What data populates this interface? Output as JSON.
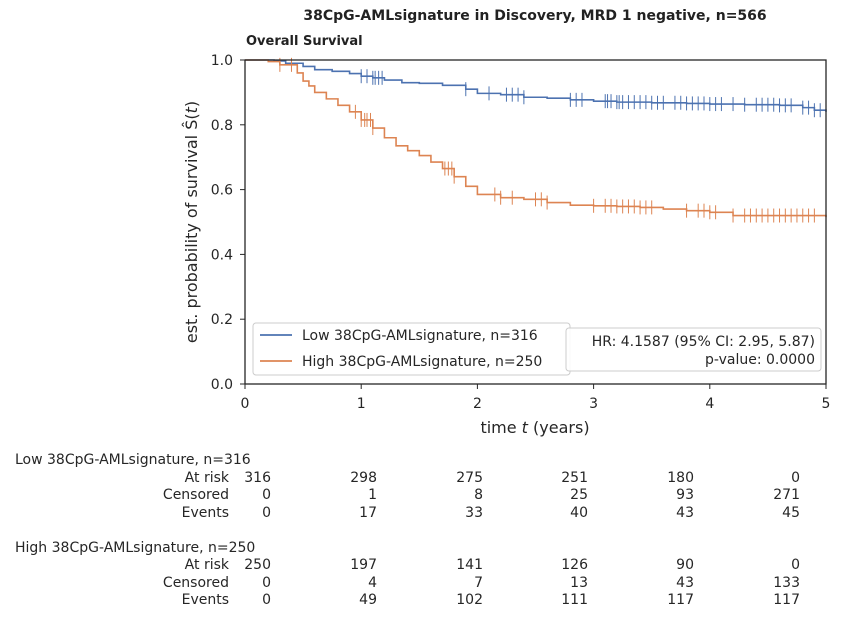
{
  "title": "38CpG-AMLsignature in Discovery, MRD 1 negative, n=566",
  "subtitle": "Overall Survival",
  "chart_data": {
    "type": "line",
    "step": true,
    "xlabel": "time t (years)",
    "ylabel": "est. probability of survival Ŝ(t)",
    "xlim": [
      0,
      5
    ],
    "ylim": [
      0,
      1
    ],
    "xticks": [
      "0",
      "1",
      "2",
      "3",
      "4",
      "5"
    ],
    "yticks": [
      "0.0",
      "0.2",
      "0.4",
      "0.6",
      "0.8",
      "1.0"
    ],
    "legend_position": "bottom-left",
    "colors": {
      "low": "#4c72b0",
      "high": "#dd8452"
    },
    "annotation": {
      "line1": "HR: 4.1587 (95% CI: 2.95, 5.87)",
      "line2": "p-value: 0.0000"
    },
    "series": [
      {
        "name": "Low 38CpG-AMLsignature, n=316",
        "color": "#4c72b0",
        "x": [
          0,
          0.25,
          0.35,
          0.5,
          0.6,
          0.75,
          0.9,
          1.0,
          1.1,
          1.2,
          1.35,
          1.5,
          1.7,
          1.9,
          2.0,
          2.2,
          2.4,
          2.6,
          2.8,
          3.0,
          3.2,
          3.5,
          3.8,
          4.0,
          4.3,
          4.6,
          4.8,
          4.9,
          5.0
        ],
        "y": [
          1.0,
          0.997,
          0.99,
          0.98,
          0.97,
          0.965,
          0.958,
          0.95,
          0.945,
          0.938,
          0.93,
          0.928,
          0.922,
          0.91,
          0.897,
          0.893,
          0.885,
          0.882,
          0.877,
          0.873,
          0.87,
          0.868,
          0.866,
          0.864,
          0.862,
          0.86,
          0.853,
          0.845,
          0.84
        ],
        "censor_x": [
          1.0,
          1.05,
          1.1,
          1.12,
          1.15,
          1.18,
          1.9,
          2.1,
          2.25,
          2.3,
          2.35,
          2.4,
          2.8,
          2.85,
          2.9,
          3.1,
          3.12,
          3.15,
          3.2,
          3.22,
          3.25,
          3.3,
          3.35,
          3.4,
          3.45,
          3.5,
          3.55,
          3.6,
          3.7,
          3.75,
          3.8,
          3.85,
          3.9,
          3.95,
          4.0,
          4.05,
          4.1,
          4.2,
          4.3,
          4.4,
          4.45,
          4.5,
          4.55,
          4.6,
          4.65,
          4.7,
          4.8,
          4.85,
          4.9,
          4.95
        ]
      },
      {
        "name": "High 38CpG-AMLsignature, n=250",
        "color": "#dd8452",
        "x": [
          0,
          0.2,
          0.3,
          0.45,
          0.5,
          0.55,
          0.6,
          0.7,
          0.8,
          0.9,
          1.0,
          1.1,
          1.2,
          1.3,
          1.4,
          1.5,
          1.6,
          1.7,
          1.8,
          1.9,
          2.0,
          2.2,
          2.4,
          2.6,
          2.8,
          3.0,
          3.2,
          3.4,
          3.6,
          3.8,
          4.0,
          4.2,
          5.0
        ],
        "y": [
          1.0,
          0.995,
          0.985,
          0.96,
          0.935,
          0.92,
          0.9,
          0.88,
          0.86,
          0.84,
          0.815,
          0.79,
          0.76,
          0.735,
          0.72,
          0.705,
          0.685,
          0.665,
          0.64,
          0.61,
          0.585,
          0.575,
          0.57,
          0.56,
          0.552,
          0.55,
          0.548,
          0.545,
          0.54,
          0.535,
          0.53,
          0.52,
          0.515
        ],
        "censor_x": [
          0.3,
          0.4,
          0.95,
          1.0,
          1.03,
          1.05,
          1.08,
          1.1,
          1.72,
          1.75,
          1.78,
          1.8,
          2.15,
          2.2,
          2.3,
          2.5,
          2.55,
          2.6,
          3.0,
          3.1,
          3.15,
          3.2,
          3.25,
          3.3,
          3.35,
          3.4,
          3.45,
          3.5,
          3.8,
          3.9,
          3.95,
          4.0,
          4.05,
          4.2,
          4.3,
          4.35,
          4.4,
          4.45,
          4.5,
          4.55,
          4.6,
          4.65,
          4.7,
          4.75,
          4.8,
          4.85,
          4.9
        ]
      }
    ],
    "risk_table": {
      "times": [
        "0",
        "1",
        "2",
        "3",
        "4",
        "5"
      ],
      "groups": [
        {
          "name": "Low 38CpG-AMLsignature, n=316",
          "rows": [
            {
              "label": "At risk",
              "values": [
                "316",
                "298",
                "275",
                "251",
                "180",
                "0"
              ]
            },
            {
              "label": "Censored",
              "values": [
                "0",
                "1",
                "8",
                "25",
                "93",
                "271"
              ]
            },
            {
              "label": "Events",
              "values": [
                "0",
                "17",
                "33",
                "40",
                "43",
                "45"
              ]
            }
          ]
        },
        {
          "name": "High 38CpG-AMLsignature, n=250",
          "rows": [
            {
              "label": "At risk",
              "values": [
                "250",
                "197",
                "141",
                "126",
                "90",
                "0"
              ]
            },
            {
              "label": "Censored",
              "values": [
                "0",
                "4",
                "7",
                "13",
                "43",
                "133"
              ]
            },
            {
              "label": "Events",
              "values": [
                "0",
                "49",
                "102",
                "111",
                "117",
                "117"
              ]
            }
          ]
        }
      ]
    }
  }
}
